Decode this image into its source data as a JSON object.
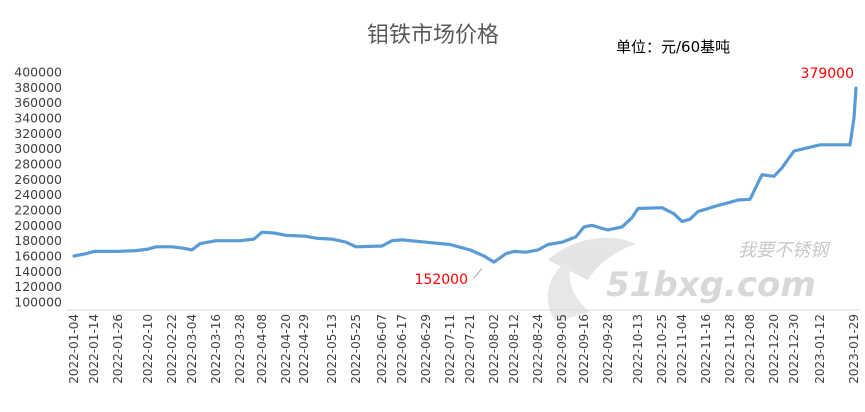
{
  "watermark": {
    "brand_cn": "我要不锈钢",
    "brand_en": "51bxg.com"
  },
  "chart_data": {
    "type": "line",
    "title": "钼铁市场价格",
    "unit": "单位：元/60基吨",
    "xlabel": "",
    "ylabel": "",
    "ylim": [
      100000,
      400000
    ],
    "ytick_step": 20000,
    "grid": false,
    "legend": "none",
    "line_color": "#5b9bd5",
    "label_color": "#ff0000",
    "x_ticks": [
      "2022-01-04",
      "2022-01-14",
      "2022-01-26",
      "2022-02-10",
      "2022-02-22",
      "2022-03-04",
      "2022-03-16",
      "2022-03-28",
      "2022-04-08",
      "2022-04-20",
      "2022-04-29",
      "2022-05-13",
      "2022-05-25",
      "2022-06-07",
      "2022-06-17",
      "2022-06-29",
      "2022-07-11",
      "2022-07-21",
      "2022-08-02",
      "2022-08-12",
      "2022-08-24",
      "2022-09-05",
      "2022-09-16",
      "2022-09-28",
      "2022-10-13",
      "2022-10-25",
      "2022-11-04",
      "2022-11-16",
      "2022-11-28",
      "2022-12-08",
      "2022-12-20",
      "2022-12-30",
      "2023-01-12",
      "2023-01-29"
    ],
    "series": [
      {
        "points": [
          [
            "2022-01-04",
            160000
          ],
          [
            "2022-01-10",
            163000
          ],
          [
            "2022-01-14",
            166000
          ],
          [
            "2022-01-26",
            166000
          ],
          [
            "2022-02-04",
            167000
          ],
          [
            "2022-02-10",
            169000
          ],
          [
            "2022-02-14",
            172000
          ],
          [
            "2022-02-22",
            172000
          ],
          [
            "2022-02-28",
            170000
          ],
          [
            "2022-03-04",
            168000
          ],
          [
            "2022-03-08",
            176000
          ],
          [
            "2022-03-12",
            178000
          ],
          [
            "2022-03-16",
            180000
          ],
          [
            "2022-03-28",
            180000
          ],
          [
            "2022-04-04",
            182000
          ],
          [
            "2022-04-08",
            191000
          ],
          [
            "2022-04-14",
            190000
          ],
          [
            "2022-04-20",
            187000
          ],
          [
            "2022-04-29",
            186000
          ],
          [
            "2022-05-06",
            183000
          ],
          [
            "2022-05-13",
            182000
          ],
          [
            "2022-05-20",
            178000
          ],
          [
            "2022-05-25",
            172000
          ],
          [
            "2022-06-07",
            173000
          ],
          [
            "2022-06-12",
            180000
          ],
          [
            "2022-06-17",
            181000
          ],
          [
            "2022-06-29",
            178000
          ],
          [
            "2022-07-11",
            175000
          ],
          [
            "2022-07-21",
            168000
          ],
          [
            "2022-07-28",
            160000
          ],
          [
            "2022-08-02",
            152000
          ],
          [
            "2022-08-08",
            163000
          ],
          [
            "2022-08-12",
            166000
          ],
          [
            "2022-08-18",
            165000
          ],
          [
            "2022-08-24",
            168000
          ],
          [
            "2022-08-29",
            175000
          ],
          [
            "2022-09-05",
            178000
          ],
          [
            "2022-09-12",
            185000
          ],
          [
            "2022-09-16",
            198000
          ],
          [
            "2022-09-20",
            200000
          ],
          [
            "2022-09-25",
            196000
          ],
          [
            "2022-09-28",
            194000
          ],
          [
            "2022-10-05",
            198000
          ],
          [
            "2022-10-10",
            210000
          ],
          [
            "2022-10-13",
            222000
          ],
          [
            "2022-10-25",
            223000
          ],
          [
            "2022-10-31",
            215000
          ],
          [
            "2022-11-04",
            205000
          ],
          [
            "2022-11-08",
            208000
          ],
          [
            "2022-11-12",
            218000
          ],
          [
            "2022-11-16",
            221000
          ],
          [
            "2022-11-22",
            226000
          ],
          [
            "2022-11-28",
            230000
          ],
          [
            "2022-12-02",
            233000
          ],
          [
            "2022-12-08",
            234000
          ],
          [
            "2022-12-14",
            266000
          ],
          [
            "2022-12-20",
            264000
          ],
          [
            "2022-12-24",
            275000
          ],
          [
            "2022-12-30",
            297000
          ],
          [
            "2023-01-04",
            300000
          ],
          [
            "2023-01-12",
            305000
          ],
          [
            "2023-01-27",
            305000
          ],
          [
            "2023-01-29",
            340000
          ],
          [
            "2023-01-30",
            379000
          ]
        ]
      }
    ],
    "annotations": [
      {
        "date": "2022-08-02",
        "value": 152000,
        "text": "152000",
        "position": "left-below"
      },
      {
        "date": "2023-01-30",
        "value": 379000,
        "text": "379000",
        "position": "above-left"
      }
    ]
  }
}
